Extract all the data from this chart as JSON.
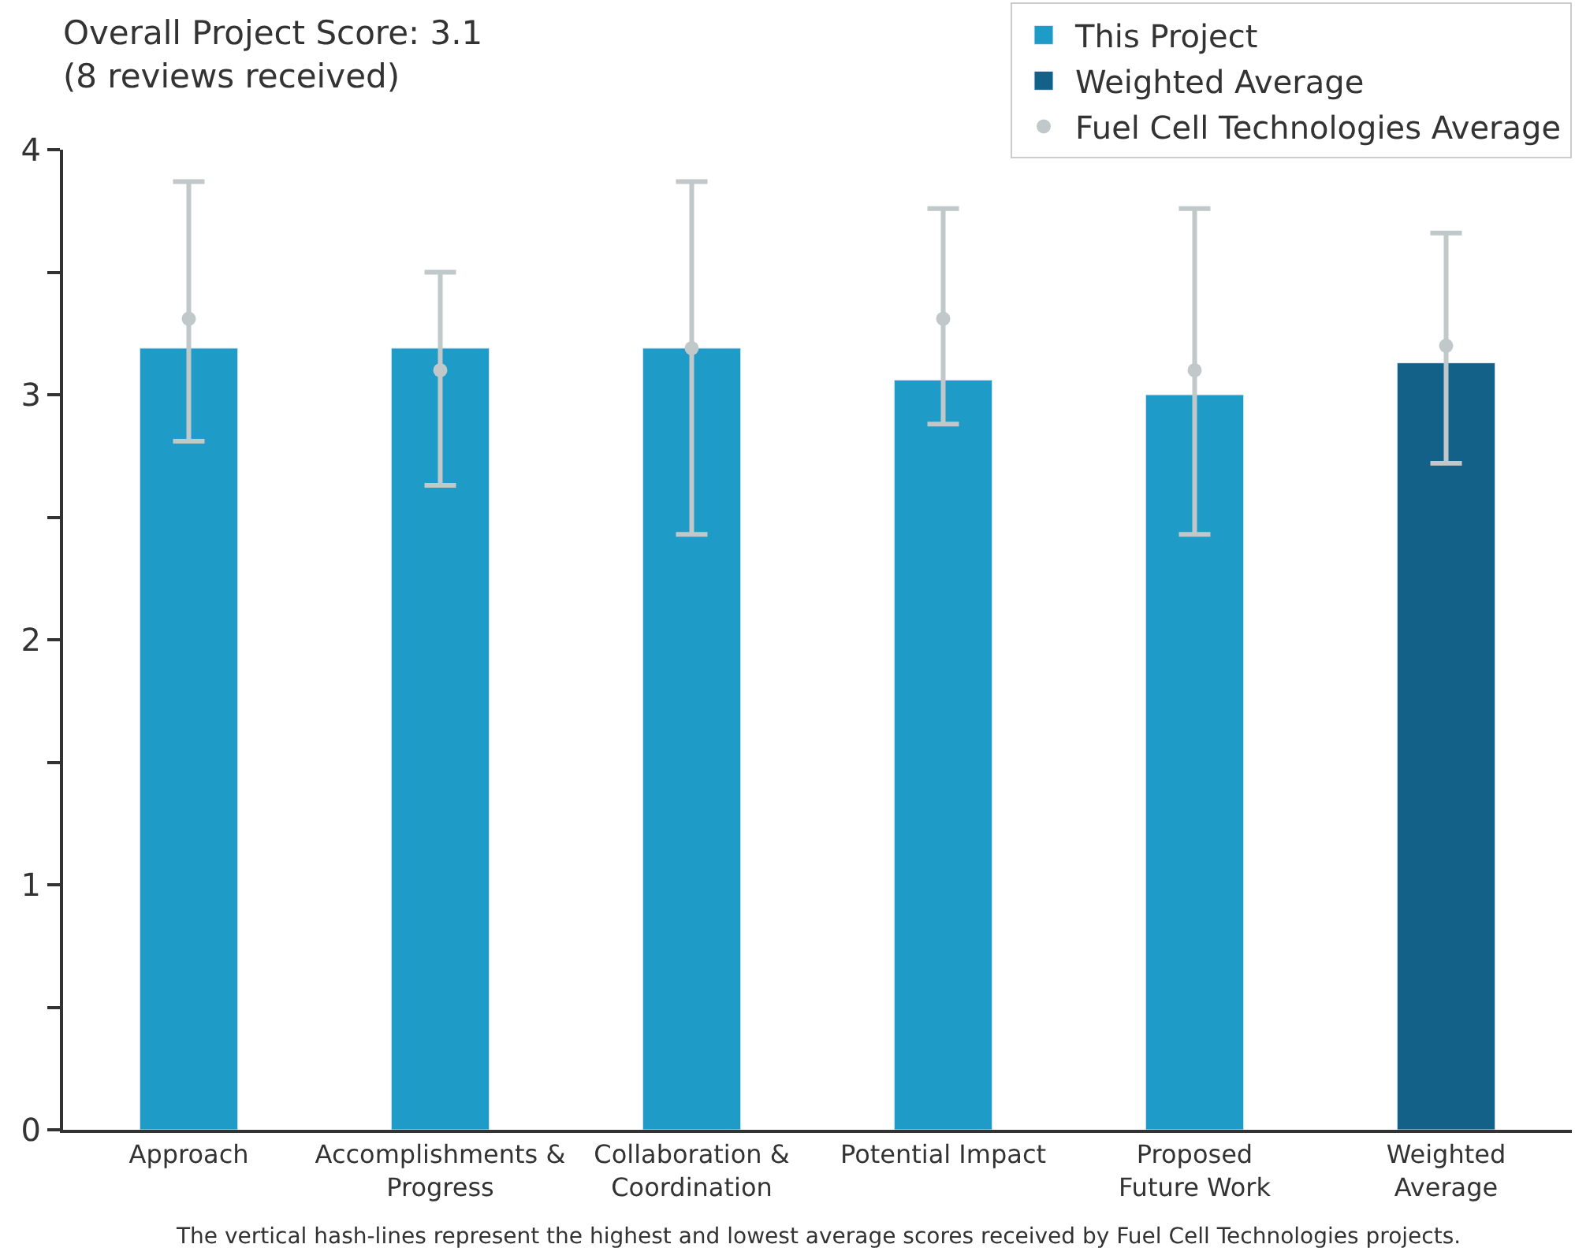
{
  "chart_data": {
    "type": "bar",
    "title": "Overall Project Score: 3.1\n(8 reviews received)",
    "categories": [
      "Approach",
      "Accomplishments & Progress",
      "Collaboration & Coordination",
      "Potential Impact",
      "Proposed Future Work",
      "Weighted Average"
    ],
    "series": [
      {
        "name": "This Project",
        "color": "#1e9bc6",
        "values": [
          3.19,
          3.19,
          3.19,
          3.06,
          3.0,
          null
        ]
      },
      {
        "name": "Weighted Average",
        "color": "#136189",
        "values": [
          null,
          null,
          null,
          null,
          null,
          3.13
        ]
      },
      {
        "name": "Fuel Cell Technologies Average",
        "type": "scatter",
        "marker": "circle",
        "color": "#c0c8c9",
        "values": [
          3.31,
          3.1,
          3.19,
          3.31,
          3.1,
          3.2
        ],
        "errors": [
          [
            2.81,
            3.87
          ],
          [
            2.63,
            3.5
          ],
          [
            2.43,
            3.87
          ],
          [
            2.88,
            3.76
          ],
          [
            2.43,
            3.76
          ],
          [
            2.72,
            3.66
          ]
        ]
      }
    ],
    "ylim": [
      0,
      4
    ],
    "yticks": [
      0,
      {
        "value": 0.5,
        "label": null
      },
      1,
      {
        "value": 1.5,
        "label": null
      },
      2,
      {
        "value": 2.5,
        "label": null
      },
      3,
      {
        "value": 3.5,
        "label": null
      },
      4
    ],
    "legend": "top right",
    "annotations": [
      "The vertical hash-lines represent the highest and lowest average scores received by Fuel Cell Technologies projects."
    ]
  }
}
